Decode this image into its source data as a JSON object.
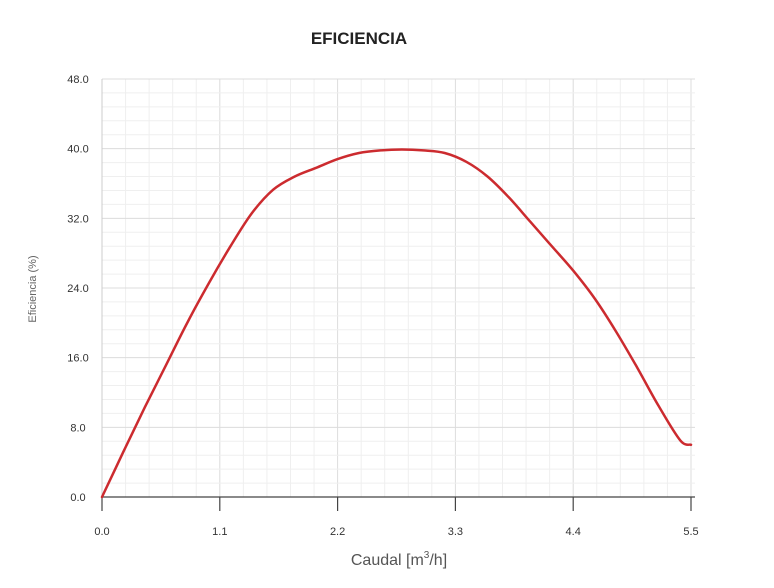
{
  "chart_data": {
    "type": "line",
    "title": "EFICIENCIA",
    "xlabel_prefix": "Caudal [m",
    "xlabel_sup": "3",
    "xlabel_suffix": "/h]",
    "ylabel": "Eficiencia (%)",
    "xlim": [
      0,
      5.5
    ],
    "ylim": [
      0,
      48
    ],
    "x_ticks": [
      "0.0",
      "1.1",
      "2.2",
      "3.3",
      "4.4",
      "5.5"
    ],
    "y_ticks": [
      "0.0",
      "8.0",
      "16.0",
      "24.0",
      "32.0",
      "40.0",
      "48.0"
    ],
    "grid": true,
    "series": [
      {
        "color": "#cc2b2f",
        "x": [
          0.0,
          0.2,
          0.4,
          0.6,
          0.8,
          1.0,
          1.2,
          1.4,
          1.6,
          1.8,
          2.0,
          2.2,
          2.4,
          2.6,
          2.8,
          3.0,
          3.2,
          3.4,
          3.6,
          3.8,
          4.0,
          4.2,
          4.4,
          4.6,
          4.8,
          5.0,
          5.2,
          5.4,
          5.5
        ],
        "y": [
          0.0,
          5.2,
          10.3,
          15.2,
          20.1,
          24.6,
          28.8,
          32.6,
          35.3,
          36.8,
          37.8,
          38.8,
          39.5,
          39.8,
          39.9,
          39.8,
          39.5,
          38.5,
          36.8,
          34.4,
          31.6,
          28.8,
          26.0,
          22.8,
          19.0,
          14.8,
          10.4,
          6.5,
          6.0
        ]
      }
    ]
  }
}
